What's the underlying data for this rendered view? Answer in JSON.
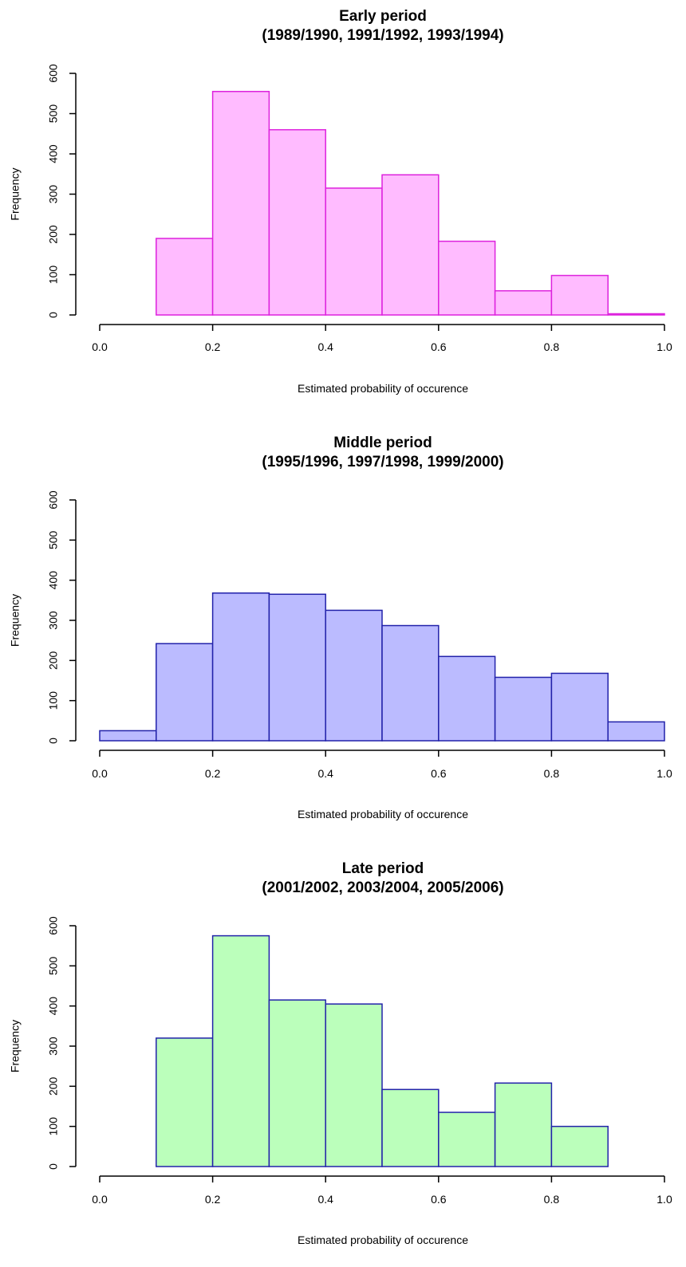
{
  "chart_data": [
    {
      "type": "bar",
      "title": "Early period",
      "subtitle": "(1989/1990, 1991/1992, 1993/1994)",
      "xlabel": "Estimated probability of occurence",
      "ylabel": "Frequency",
      "xlim": [
        0,
        1
      ],
      "ylim": [
        0,
        600
      ],
      "xticks": [
        "0.0",
        "0.2",
        "0.4",
        "0.6",
        "0.8",
        "1.0"
      ],
      "yticks": [
        "0",
        "100",
        "200",
        "300",
        "400",
        "500",
        "600"
      ],
      "fill_color": "#ffbbff",
      "border_color": "#dd22dd",
      "bins": [
        {
          "x0": 0.1,
          "x1": 0.2,
          "value": 190
        },
        {
          "x0": 0.2,
          "x1": 0.3,
          "value": 555
        },
        {
          "x0": 0.3,
          "x1": 0.4,
          "value": 460
        },
        {
          "x0": 0.4,
          "x1": 0.5,
          "value": 315
        },
        {
          "x0": 0.5,
          "x1": 0.6,
          "value": 348
        },
        {
          "x0": 0.6,
          "x1": 0.7,
          "value": 183
        },
        {
          "x0": 0.7,
          "x1": 0.8,
          "value": 60
        },
        {
          "x0": 0.8,
          "x1": 0.9,
          "value": 98
        },
        {
          "x0": 0.9,
          "x1": 1.0,
          "value": 3
        }
      ]
    },
    {
      "type": "bar",
      "title": "Middle period",
      "subtitle": "(1995/1996, 1997/1998, 1999/2000)",
      "xlabel": "Estimated probability of occurence",
      "ylabel": "Frequency",
      "xlim": [
        0,
        1
      ],
      "ylim": [
        0,
        600
      ],
      "xticks": [
        "0.0",
        "0.2",
        "0.4",
        "0.6",
        "0.8",
        "1.0"
      ],
      "yticks": [
        "0",
        "100",
        "200",
        "300",
        "400",
        "500",
        "600"
      ],
      "fill_color": "#bbbbff",
      "border_color": "#2222aa",
      "bins": [
        {
          "x0": 0.0,
          "x1": 0.1,
          "value": 25
        },
        {
          "x0": 0.1,
          "x1": 0.2,
          "value": 242
        },
        {
          "x0": 0.2,
          "x1": 0.3,
          "value": 368
        },
        {
          "x0": 0.3,
          "x1": 0.4,
          "value": 365
        },
        {
          "x0": 0.4,
          "x1": 0.5,
          "value": 325
        },
        {
          "x0": 0.5,
          "x1": 0.6,
          "value": 287
        },
        {
          "x0": 0.6,
          "x1": 0.7,
          "value": 210
        },
        {
          "x0": 0.7,
          "x1": 0.8,
          "value": 158
        },
        {
          "x0": 0.8,
          "x1": 0.9,
          "value": 168
        },
        {
          "x0": 0.9,
          "x1": 1.0,
          "value": 47
        }
      ]
    },
    {
      "type": "bar",
      "title": "Late period",
      "subtitle": "(2001/2002, 2003/2004, 2005/2006)",
      "xlabel": "Estimated probability of occurence",
      "ylabel": "Frequency",
      "xlim": [
        0,
        1
      ],
      "ylim": [
        0,
        600
      ],
      "xticks": [
        "0.0",
        "0.2",
        "0.4",
        "0.6",
        "0.8",
        "1.0"
      ],
      "yticks": [
        "0",
        "100",
        "200",
        "300",
        "400",
        "500",
        "600"
      ],
      "fill_color": "#bbffbb",
      "border_color": "#2222aa",
      "bins": [
        {
          "x0": 0.1,
          "x1": 0.2,
          "value": 320
        },
        {
          "x0": 0.2,
          "x1": 0.3,
          "value": 575
        },
        {
          "x0": 0.3,
          "x1": 0.4,
          "value": 415
        },
        {
          "x0": 0.4,
          "x1": 0.5,
          "value": 405
        },
        {
          "x0": 0.5,
          "x1": 0.6,
          "value": 192
        },
        {
          "x0": 0.6,
          "x1": 0.7,
          "value": 135
        },
        {
          "x0": 0.7,
          "x1": 0.8,
          "value": 208
        },
        {
          "x0": 0.8,
          "x1": 0.9,
          "value": 100
        }
      ]
    }
  ]
}
